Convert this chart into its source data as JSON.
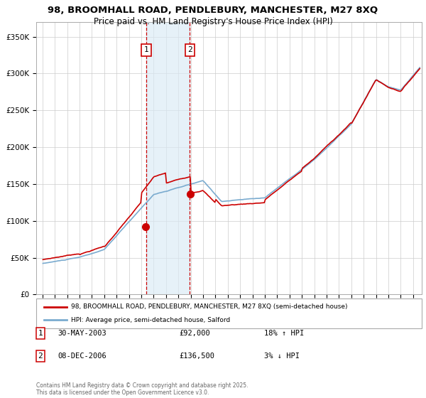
{
  "title_line1": "98, BROOMHALL ROAD, PENDLEBURY, MANCHESTER, M27 8XQ",
  "title_line2": "Price paid vs. HM Land Registry's House Price Index (HPI)",
  "ylim": [
    0,
    370000
  ],
  "ytick_labels": [
    "£0",
    "£50K",
    "£100K",
    "£150K",
    "£200K",
    "£250K",
    "£300K",
    "£350K"
  ],
  "ytick_values": [
    0,
    50000,
    100000,
    150000,
    200000,
    250000,
    300000,
    350000
  ],
  "legend_line1": "98, BROOMHALL ROAD, PENDLEBURY, MANCHESTER, M27 8XQ (semi-detached house)",
  "legend_line2": "HPI: Average price, semi-detached house, Salford",
  "red_line_color": "#cc0000",
  "blue_line_color": "#7aabcf",
  "purchase1_date": 2003.41,
  "purchase1_price": 92000,
  "purchase2_date": 2006.93,
  "purchase2_price": 136500,
  "purchase1_note": "30-MAY-2003",
  "purchase1_amt": "£92,000",
  "purchase1_pct": "18% ↑ HPI",
  "purchase2_note": "08-DEC-2006",
  "purchase2_amt": "£136,500",
  "purchase2_pct": "3% ↓ HPI",
  "shade_color": "#daeaf5",
  "footnote": "Contains HM Land Registry data © Crown copyright and database right 2025.\nThis data is licensed under the Open Government Licence v3.0.",
  "background_color": "#ffffff",
  "grid_color": "#cccccc"
}
